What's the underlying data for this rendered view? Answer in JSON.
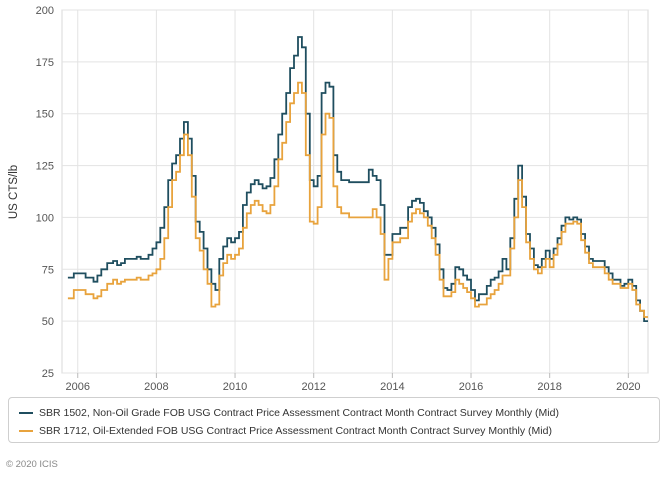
{
  "chart_data": {
    "type": "line",
    "ylabel": "US CTS/lb",
    "ylim": [
      25,
      200
    ],
    "xlim": [
      2005.6,
      2020.5
    ],
    "yticks": [
      "25",
      "50",
      "75",
      "100",
      "125",
      "150",
      "175",
      "200"
    ],
    "xticks": [
      "2006",
      "2008",
      "2010",
      "2012",
      "2014",
      "2016",
      "2018",
      "2020"
    ],
    "grid": true,
    "step": true,
    "legend_position": "bottom",
    "series": [
      {
        "name": "SBR 1502, Non-Oil Grade FOB USG Contract Price Assessment Contract Month Contract Survey Monthly (Mid)",
        "color": "#1f4e5f",
        "x": [
          2005.75,
          2005.9,
          2006.2,
          2006.4,
          2006.5,
          2006.6,
          2006.75,
          2006.9,
          2007.0,
          2007.1,
          2007.2,
          2007.5,
          2007.6,
          2007.8,
          2007.9,
          2008.0,
          2008.1,
          2008.2,
          2008.3,
          2008.4,
          2008.5,
          2008.6,
          2008.7,
          2008.8,
          2008.9,
          2009.0,
          2009.1,
          2009.2,
          2009.3,
          2009.4,
          2009.5,
          2009.6,
          2009.7,
          2009.8,
          2009.9,
          2010.0,
          2010.1,
          2010.2,
          2010.3,
          2010.4,
          2010.5,
          2010.6,
          2010.7,
          2010.8,
          2010.9,
          2011.0,
          2011.1,
          2011.2,
          2011.3,
          2011.4,
          2011.5,
          2011.6,
          2011.7,
          2011.8,
          2011.9,
          2012.0,
          2012.1,
          2012.2,
          2012.3,
          2012.4,
          2012.5,
          2012.6,
          2012.7,
          2012.9,
          2013.0,
          2013.2,
          2013.4,
          2013.5,
          2013.6,
          2013.7,
          2013.8,
          2013.9,
          2014.0,
          2014.2,
          2014.4,
          2014.5,
          2014.6,
          2014.7,
          2014.8,
          2014.9,
          2015.0,
          2015.1,
          2015.2,
          2015.3,
          2015.4,
          2015.5,
          2015.6,
          2015.7,
          2015.8,
          2015.9,
          2016.0,
          2016.1,
          2016.2,
          2016.4,
          2016.5,
          2016.6,
          2016.7,
          2016.8,
          2016.9,
          2017.0,
          2017.1,
          2017.2,
          2017.3,
          2017.4,
          2017.5,
          2017.6,
          2017.7,
          2017.8,
          2017.9,
          2018.0,
          2018.1,
          2018.2,
          2018.3,
          2018.4,
          2018.5,
          2018.6,
          2018.7,
          2018.8,
          2018.9,
          2019.0,
          2019.1,
          2019.2,
          2019.4,
          2019.5,
          2019.6,
          2019.7,
          2019.8,
          2019.9,
          2020.0,
          2020.1,
          2020.2,
          2020.3,
          2020.4,
          2020.5
        ],
        "y": [
          71,
          73,
          71,
          69,
          72,
          75,
          78,
          79,
          77,
          78,
          80,
          81,
          80,
          82,
          85,
          88,
          95,
          105,
          118,
          126,
          130,
          138,
          146,
          138,
          120,
          98,
          93,
          85,
          75,
          68,
          65,
          80,
          86,
          90,
          88,
          90,
          93,
          106,
          112,
          116,
          118,
          116,
          114,
          115,
          119,
          128,
          140,
          150,
          160,
          172,
          178,
          187,
          182,
          150,
          118,
          115,
          120,
          160,
          165,
          163,
          130,
          122,
          118,
          117,
          117,
          117,
          123,
          120,
          118,
          106,
          82,
          82,
          92,
          95,
          105,
          108,
          109,
          107,
          103,
          100,
          95,
          87,
          75,
          66,
          65,
          68,
          76,
          75,
          72,
          70,
          65,
          60,
          63,
          67,
          70,
          71,
          74,
          80,
          75,
          90,
          109,
          125,
          110,
          92,
          85,
          77,
          76,
          80,
          84,
          80,
          85,
          90,
          96,
          100,
          99,
          100,
          99,
          92,
          86,
          80,
          79,
          79,
          76,
          73,
          70,
          70,
          67,
          68,
          70,
          67,
          60,
          55,
          50,
          50
        ]
      },
      {
        "name": "SBR 1712, Oil-Extended FOB USG Contract Price Assessment Contract Month Contract Survey Monthly (Mid)",
        "color": "#e8a33d",
        "x": [
          2005.75,
          2005.9,
          2006.2,
          2006.4,
          2006.5,
          2006.6,
          2006.75,
          2006.9,
          2007.0,
          2007.1,
          2007.2,
          2007.5,
          2007.6,
          2007.8,
          2007.9,
          2008.0,
          2008.1,
          2008.2,
          2008.3,
          2008.4,
          2008.5,
          2008.6,
          2008.7,
          2008.8,
          2008.9,
          2009.0,
          2009.1,
          2009.2,
          2009.3,
          2009.4,
          2009.5,
          2009.6,
          2009.7,
          2009.8,
          2009.9,
          2010.0,
          2010.1,
          2010.2,
          2010.3,
          2010.4,
          2010.5,
          2010.6,
          2010.7,
          2010.8,
          2010.9,
          2011.0,
          2011.1,
          2011.2,
          2011.3,
          2011.4,
          2011.5,
          2011.6,
          2011.7,
          2011.8,
          2011.9,
          2012.0,
          2012.1,
          2012.2,
          2012.3,
          2012.4,
          2012.5,
          2012.6,
          2012.7,
          2012.9,
          2013.0,
          2013.2,
          2013.4,
          2013.5,
          2013.6,
          2013.7,
          2013.8,
          2013.9,
          2014.0,
          2014.2,
          2014.4,
          2014.5,
          2014.6,
          2014.7,
          2014.8,
          2014.9,
          2015.0,
          2015.1,
          2015.2,
          2015.3,
          2015.4,
          2015.5,
          2015.6,
          2015.7,
          2015.8,
          2015.9,
          2016.0,
          2016.1,
          2016.2,
          2016.4,
          2016.5,
          2016.6,
          2016.7,
          2016.8,
          2016.9,
          2017.0,
          2017.1,
          2017.2,
          2017.3,
          2017.4,
          2017.5,
          2017.6,
          2017.7,
          2017.8,
          2017.9,
          2018.0,
          2018.1,
          2018.2,
          2018.3,
          2018.4,
          2018.5,
          2018.6,
          2018.7,
          2018.8,
          2018.9,
          2019.0,
          2019.1,
          2019.2,
          2019.4,
          2019.5,
          2019.6,
          2019.7,
          2019.8,
          2019.9,
          2020.0,
          2020.1,
          2020.2,
          2020.3,
          2020.4,
          2020.5
        ],
        "y": [
          61,
          65,
          63,
          61,
          62,
          65,
          68,
          70,
          68,
          69,
          70,
          71,
          70,
          72,
          73,
          75,
          80,
          90,
          105,
          118,
          122,
          130,
          140,
          130,
          110,
          90,
          84,
          75,
          68,
          57,
          58,
          72,
          78,
          82,
          80,
          82,
          85,
          95,
          102,
          106,
          108,
          106,
          103,
          102,
          106,
          115,
          128,
          136,
          146,
          155,
          160,
          165,
          160,
          130,
          98,
          97,
          105,
          140,
          150,
          148,
          115,
          105,
          102,
          100,
          100,
          100,
          100,
          104,
          100,
          92,
          70,
          80,
          88,
          90,
          98,
          102,
          104,
          102,
          100,
          96,
          90,
          82,
          70,
          62,
          62,
          64,
          70,
          68,
          66,
          64,
          61,
          57,
          58,
          61,
          63,
          65,
          68,
          72,
          72,
          85,
          100,
          118,
          105,
          88,
          80,
          75,
          73,
          76,
          80,
          76,
          82,
          87,
          93,
          97,
          97,
          98,
          97,
          89,
          83,
          78,
          76,
          76,
          73,
          70,
          68,
          68,
          66,
          66,
          68,
          65,
          58,
          55,
          52,
          52
        ]
      }
    ]
  },
  "copyright": "© 2020 ICIS"
}
